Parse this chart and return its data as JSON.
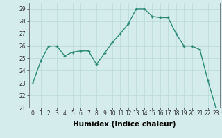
{
  "x": [
    0,
    1,
    2,
    3,
    4,
    5,
    6,
    7,
    8,
    9,
    10,
    11,
    12,
    13,
    14,
    15,
    16,
    17,
    18,
    19,
    20,
    21,
    22,
    23
  ],
  "y": [
    23,
    24.8,
    26,
    26,
    25.2,
    25.5,
    25.6,
    25.6,
    24.5,
    25.4,
    26.3,
    27.0,
    27.8,
    29.0,
    29.0,
    28.4,
    28.3,
    28.3,
    27.0,
    26.0,
    26.0,
    25.7,
    23.2,
    21.0
  ],
  "line_color": "#2e8b7a",
  "marker": "+",
  "marker_size": 3,
  "bg_color": "#d4ecec",
  "grid_color": "#b8d8d8",
  "xlabel": "Humidex (Indice chaleur)",
  "ylim": [
    21,
    29.5
  ],
  "xlim": [
    -0.5,
    23.5
  ],
  "yticks": [
    21,
    22,
    23,
    24,
    25,
    26,
    27,
    28,
    29
  ],
  "xticks": [
    0,
    1,
    2,
    3,
    4,
    5,
    6,
    7,
    8,
    9,
    10,
    11,
    12,
    13,
    14,
    15,
    16,
    17,
    18,
    19,
    20,
    21,
    22,
    23
  ],
  "tick_fontsize": 5.5,
  "xlabel_fontsize": 7.5,
  "linewidth": 1.0,
  "marker_edge_width": 1.0
}
